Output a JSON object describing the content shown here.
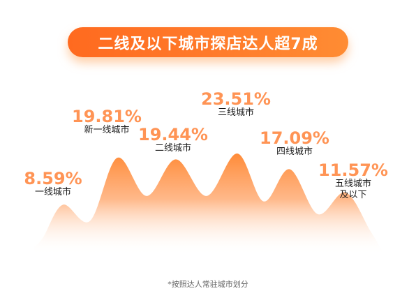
{
  "title": "二线及以下城市探店达人超7成",
  "footnote": "*按照达人常驻城市划分",
  "colors": {
    "title_bg": "#ff6a1f",
    "value_text": "#ff9455",
    "area_top": "#ff8c33",
    "area_bottom": "#ffffff"
  },
  "chart_data": {
    "type": "area",
    "categories": [
      "一线城市",
      "新一线城市",
      "二线城市",
      "三线城市",
      "四线城市",
      "五线城市\n及以下"
    ],
    "values": [
      8.59,
      19.81,
      19.44,
      23.51,
      17.09,
      11.57
    ],
    "value_labels": [
      "8.59%",
      "19.81%",
      "19.44%",
      "23.51%",
      "17.09%",
      "11.57%"
    ],
    "unit": "%"
  }
}
